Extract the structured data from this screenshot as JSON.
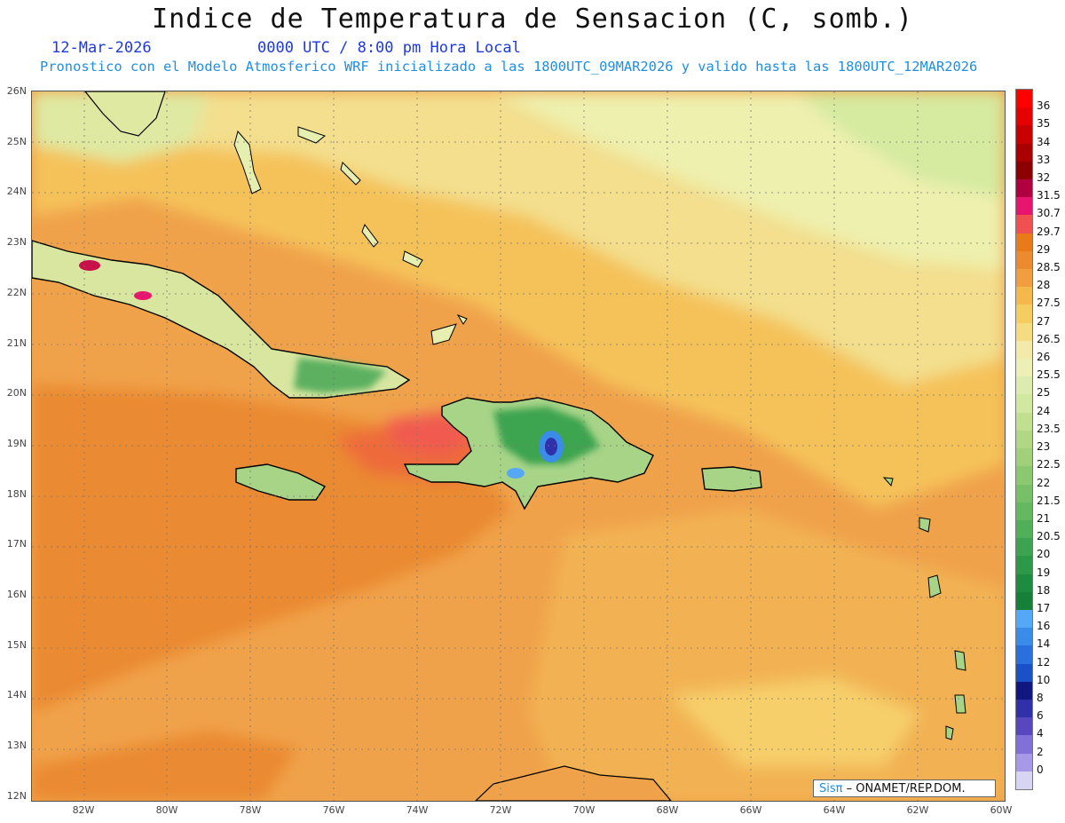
{
  "header": {
    "title": "Indice de Temperatura de Sensacion (C, somb.)",
    "date": "12-Mar-2026",
    "valid_time": "0000 UTC / 8:00 pm Hora Local",
    "model_info": "Pronostico con el Modelo Atmosferico WRF inicializado a las 1800UTC_09MAR2026 y valido hasta las  1800UTC_12MAR2026"
  },
  "axes": {
    "lat_labels": [
      "26N",
      "25N",
      "24N",
      "23N",
      "22N",
      "21N",
      "20N",
      "19N",
      "18N",
      "17N",
      "16N",
      "15N",
      "14N",
      "13N",
      "12N"
    ],
    "lon_labels": [
      "82W",
      "80W",
      "78W",
      "76W",
      "74W",
      "72W",
      "70W",
      "68W",
      "66W",
      "64W",
      "62W",
      "60W"
    ]
  },
  "legend": {
    "levels": [
      "36",
      "35",
      "34",
      "33",
      "32",
      "31.5",
      "30.7",
      "29.7",
      "29",
      "28.5",
      "28",
      "27.5",
      "27",
      "26.5",
      "26",
      "25.5",
      "25",
      "24",
      "23.5",
      "23",
      "22.5",
      "22",
      "21.5",
      "21",
      "20.5",
      "20",
      "19",
      "18",
      "17",
      "16",
      "14",
      "12",
      "10",
      "8",
      "6",
      "4",
      "2",
      "0"
    ],
    "colors": [
      "#ff0000",
      "#e60000",
      "#c80000",
      "#aa0000",
      "#8c0000",
      "#b00040",
      "#e8156e",
      "#f05050",
      "#e87a1a",
      "#ec8a30",
      "#f09e40",
      "#f5b84a",
      "#f5cc60",
      "#f5dc80",
      "#f2eaa8",
      "#ecf0b4",
      "#dcecae",
      "#d0e8a0",
      "#c0e090",
      "#b0d884",
      "#a0d07a",
      "#8cc870",
      "#78c068",
      "#64b860",
      "#50b058",
      "#3ca450",
      "#2c9848",
      "#1e8c40",
      "#168038",
      "#55a8f5",
      "#3a8ce8",
      "#2a70dc",
      "#1a50c8",
      "#101880",
      "#3030a8",
      "#5848c0",
      "#8070d8",
      "#a898e8",
      "#d8d4f4"
    ]
  },
  "credit": {
    "brand": "Sisπ",
    "org": "– ONAMET/REP.DOM."
  }
}
